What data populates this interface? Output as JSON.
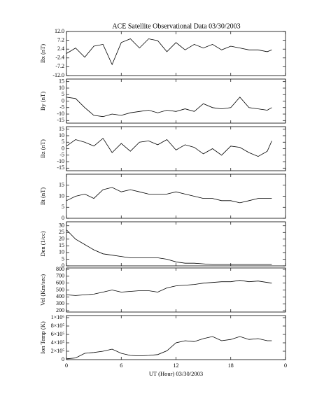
{
  "title": "ACE Satellite Observational Data   03/30/2003",
  "chart_data": [
    {
      "type": "line",
      "ylabel": "Bx (nT)",
      "x": [
        0,
        1,
        2,
        3,
        4,
        5,
        6,
        7,
        8,
        9,
        10,
        11,
        12,
        13,
        14,
        15,
        16,
        17,
        18,
        19,
        20,
        21,
        22,
        22.5
      ],
      "values": [
        0,
        3,
        -2,
        4,
        5,
        -6,
        6,
        8,
        3,
        8,
        7,
        1,
        6,
        2,
        5,
        3,
        5,
        2,
        4,
        3,
        2,
        2,
        1,
        2
      ],
      "xlim": [
        0,
        24
      ],
      "xticks": [
        0,
        6,
        12,
        18,
        24
      ],
      "ylim": [
        -12,
        12
      ],
      "yticks": [
        {
          "value": -12,
          "label": "-12.0"
        },
        -7.2,
        -2.4,
        2.4,
        7.2,
        {
          "value": 12,
          "label": "12.0"
        }
      ],
      "color": "#000000"
    },
    {
      "type": "line",
      "ylabel": "By (nT)",
      "x": [
        0,
        1,
        2,
        3,
        4,
        5,
        6,
        7,
        8,
        9,
        10,
        11,
        12,
        13,
        14,
        15,
        16,
        17,
        18,
        19,
        20,
        21,
        22,
        22.5
      ],
      "values": [
        3,
        2,
        -5,
        -11,
        -12,
        -10,
        -11,
        -9,
        -8,
        -7,
        -9,
        -7,
        -8,
        -6,
        -8,
        -2,
        -5,
        -6,
        -5,
        3,
        -5,
        -6,
        -7,
        -5
      ],
      "xlim": [
        0,
        24
      ],
      "xticks": [
        0,
        6,
        12,
        18,
        24
      ],
      "ylim": [
        -17,
        17
      ],
      "yticks": [
        -15,
        -10,
        -5,
        0,
        5,
        10,
        15
      ],
      "color": "#000000"
    },
    {
      "type": "line",
      "ylabel": "Bz (nT)",
      "x": [
        0,
        1,
        2,
        3,
        4,
        5,
        6,
        7,
        8,
        9,
        10,
        11,
        12,
        13,
        14,
        15,
        16,
        17,
        18,
        19,
        20,
        21,
        22,
        22.5
      ],
      "values": [
        2,
        7,
        5,
        2,
        8,
        -3,
        4,
        -2,
        5,
        6,
        3,
        7,
        -1,
        3,
        1,
        -4,
        0,
        -5,
        2,
        1,
        -3,
        -6,
        -2,
        6
      ],
      "xlim": [
        0,
        24
      ],
      "xticks": [
        0,
        6,
        12,
        18,
        24
      ],
      "ylim": [
        -17,
        17
      ],
      "yticks": [
        -15,
        -10,
        -5,
        0,
        5,
        10,
        15
      ],
      "color": "#000000"
    },
    {
      "type": "line",
      "ylabel": "Bt (nT)",
      "x": [
        0,
        1,
        2,
        3,
        4,
        5,
        6,
        7,
        8,
        9,
        10,
        11,
        12,
        13,
        14,
        15,
        16,
        17,
        18,
        19,
        20,
        21,
        22,
        22.5
      ],
      "values": [
        8,
        10,
        11,
        9,
        13,
        14,
        12,
        13,
        12,
        11,
        11,
        11,
        12,
        11,
        10,
        9,
        9,
        8,
        8,
        7,
        8,
        9,
        9,
        9
      ],
      "xlim": [
        0,
        24
      ],
      "xticks": [
        0,
        6,
        12,
        18,
        24
      ],
      "ylim": [
        0,
        20
      ],
      "yticks": [
        0,
        5,
        10,
        15
      ],
      "color": "#000000"
    },
    {
      "type": "line",
      "ylabel": "Den (1/cc)",
      "x": [
        0,
        1,
        2,
        3,
        4,
        5,
        6,
        7,
        8,
        9,
        10,
        11,
        12,
        13,
        14,
        15,
        16,
        17,
        18,
        19,
        20,
        21,
        22,
        22.5
      ],
      "values": [
        27,
        20,
        16,
        12,
        9,
        8,
        7,
        6,
        6,
        6,
        6,
        5,
        3,
        2,
        2,
        1.5,
        1,
        1,
        1,
        1,
        1,
        1,
        1,
        1
      ],
      "xlim": [
        0,
        24
      ],
      "xticks": [
        0,
        6,
        12,
        18,
        24
      ],
      "ylim": [
        0,
        33
      ],
      "yticks": [
        0,
        5,
        10,
        15,
        20,
        25,
        30
      ],
      "color": "#000000"
    },
    {
      "type": "line",
      "ylabel": "Vel (Km/sec)",
      "x": [
        0,
        1,
        2,
        3,
        4,
        5,
        6,
        7,
        8,
        9,
        10,
        11,
        12,
        13,
        14,
        15,
        16,
        17,
        18,
        19,
        20,
        21,
        22,
        22.5
      ],
      "values": [
        430,
        420,
        430,
        440,
        470,
        500,
        470,
        480,
        490,
        490,
        470,
        530,
        560,
        570,
        580,
        600,
        610,
        620,
        620,
        640,
        620,
        630,
        610,
        600
      ],
      "xlim": [
        0,
        24
      ],
      "xticks": [
        0,
        6,
        12,
        18,
        24
      ],
      "ylim": [
        180,
        820
      ],
      "yticks": [
        200,
        300,
        400,
        500,
        600,
        700,
        800
      ],
      "color": "#000000"
    },
    {
      "type": "line",
      "ylabel": "Ion Temp (K)",
      "xlabel": "UT (Hour)  03/30/2003",
      "x": [
        0,
        1,
        2,
        3,
        4,
        5,
        6,
        7,
        8,
        9,
        10,
        11,
        12,
        13,
        14,
        15,
        16,
        17,
        18,
        19,
        20,
        21,
        22,
        22.5
      ],
      "values": [
        20000,
        40000,
        150000,
        170000,
        200000,
        250000,
        150000,
        100000,
        90000,
        100000,
        120000,
        210000,
        400000,
        450000,
        430000,
        500000,
        550000,
        450000,
        480000,
        550000,
        480000,
        500000,
        450000,
        450000
      ],
      "xlim": [
        0,
        24
      ],
      "xticks": [
        0,
        6,
        12,
        18,
        {
          "value": 24,
          "label": "0"
        }
      ],
      "ylim": [
        0,
        1050000
      ],
      "yticks": [
        0,
        {
          "value": 200000,
          "label": "2×10⁵"
        },
        {
          "value": 400000,
          "label": "4×10⁵"
        },
        {
          "value": 600000,
          "label": "6×10⁵"
        },
        {
          "value": 800000,
          "label": "8×10⁵"
        },
        {
          "value": 1000000,
          "label": "1×10⁶"
        }
      ],
      "color": "#000000"
    }
  ]
}
